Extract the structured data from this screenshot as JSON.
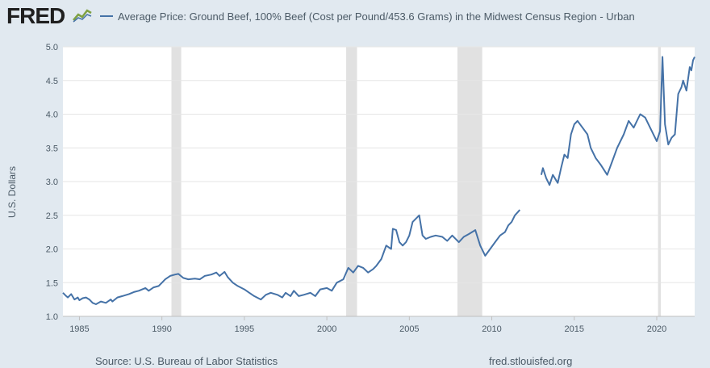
{
  "header": {
    "logo": "FRED",
    "logo_icon": "line-graph-icon"
  },
  "chart_data": {
    "type": "line",
    "ylabel": "U.S. Dollars",
    "xlim": [
      1984.0,
      2022.3
    ],
    "ylim": [
      1.0,
      5.0
    ],
    "yticks": [
      "1.0",
      "1.5",
      "2.0",
      "2.5",
      "3.0",
      "3.5",
      "4.0",
      "4.5",
      "5.0"
    ],
    "xticks": [
      "1985",
      "1990",
      "1995",
      "2000",
      "2005",
      "2010",
      "2015",
      "2020"
    ],
    "grid": true,
    "legend_position": "top-left",
    "recessions": [
      [
        1990.58,
        1991.17
      ],
      [
        2001.17,
        2001.83
      ],
      [
        2007.92,
        2009.42
      ],
      [
        2020.08,
        2020.25
      ]
    ],
    "series": [
      {
        "name": "Average Price: Ground Beef, 100% Beef (Cost per Pound/453.6 Grams) in the Midwest Census Region - Urban",
        "color": "#4572a7",
        "segments": [
          {
            "x": [
              1984.0,
              1984.2,
              1984.3,
              1984.5,
              1984.7,
              1984.9,
              1985.0,
              1985.2,
              1985.4,
              1985.6,
              1985.8,
              1986.0,
              1986.3,
              1986.6,
              1986.9,
              1987.0,
              1987.3,
              1987.6,
              1988.0,
              1988.3,
              1988.6,
              1989.0,
              1989.2,
              1989.5,
              1989.8,
              1990.0,
              1990.2,
              1990.5,
              1990.8,
              1991.0,
              1991.3,
              1991.6,
              1992.0,
              1992.3,
              1992.6,
              1993.0,
              1993.3,
              1993.5,
              1993.8,
              1994.0,
              1994.3,
              1994.6,
              1995.0,
              1995.3,
              1995.6,
              1996.0,
              1996.3,
              1996.6,
              1997.0,
              1997.3,
              1997.5,
              1997.8,
              1998.0,
              1998.3,
              1998.6,
              1999.0,
              1999.3,
              1999.6,
              2000.0,
              2000.3,
              2000.6,
              2001.0,
              2001.3,
              2001.6,
              2001.9,
              2002.2,
              2002.5,
              2002.8,
              2003.0,
              2003.3,
              2003.6,
              2003.9,
              2004.0,
              2004.2,
              2004.4,
              2004.6,
              2004.8,
              2005.0,
              2005.2,
              2005.4,
              2005.6,
              2005.8,
              2006.0,
              2006.3,
              2006.6,
              2007.0,
              2007.3,
              2007.6,
              2008.0,
              2008.3,
              2008.6,
              2009.0,
              2009.3,
              2009.6,
              2009.9,
              2010.2,
              2010.5,
              2010.8,
              2011.0,
              2011.2,
              2011.4,
              2011.7
            ],
            "y": [
              1.35,
              1.3,
              1.28,
              1.33,
              1.25,
              1.28,
              1.24,
              1.27,
              1.28,
              1.25,
              1.2,
              1.18,
              1.22,
              1.2,
              1.25,
              1.22,
              1.28,
              1.3,
              1.33,
              1.36,
              1.38,
              1.42,
              1.38,
              1.43,
              1.45,
              1.5,
              1.55,
              1.6,
              1.62,
              1.63,
              1.57,
              1.55,
              1.56,
              1.55,
              1.6,
              1.62,
              1.65,
              1.6,
              1.66,
              1.58,
              1.5,
              1.45,
              1.4,
              1.35,
              1.3,
              1.25,
              1.32,
              1.35,
              1.32,
              1.28,
              1.35,
              1.3,
              1.38,
              1.3,
              1.32,
              1.35,
              1.3,
              1.4,
              1.42,
              1.38,
              1.5,
              1.55,
              1.72,
              1.65,
              1.75,
              1.72,
              1.65,
              1.7,
              1.75,
              1.85,
              2.05,
              2.0,
              2.3,
              2.28,
              2.1,
              2.05,
              2.1,
              2.2,
              2.4,
              2.45,
              2.5,
              2.2,
              2.15,
              2.18,
              2.2,
              2.18,
              2.12,
              2.2,
              2.1,
              2.18,
              2.22,
              2.28,
              2.05,
              1.9,
              2.0,
              2.1,
              2.2,
              2.25,
              2.35,
              2.4,
              2.5,
              2.58
            ]
          },
          {
            "x": [
              2013.0,
              2013.1,
              2013.3,
              2013.5,
              2013.7,
              2014.0,
              2014.2,
              2014.4,
              2014.6,
              2014.8,
              2015.0,
              2015.2,
              2015.5,
              2015.8,
              2016.0,
              2016.3,
              2016.6,
              2017.0,
              2017.3,
              2017.6,
              2018.0,
              2018.3,
              2018.6,
              2019.0,
              2019.3,
              2019.6,
              2020.0,
              2020.2,
              2020.35,
              2020.5,
              2020.7,
              2020.9,
              2021.1,
              2021.3,
              2021.5,
              2021.6,
              2021.8,
              2022.0,
              2022.1,
              2022.2,
              2022.3
            ],
            "y": [
              3.1,
              3.2,
              3.05,
              2.95,
              3.1,
              2.98,
              3.2,
              3.4,
              3.35,
              3.7,
              3.85,
              3.9,
              3.8,
              3.7,
              3.5,
              3.35,
              3.25,
              3.1,
              3.3,
              3.5,
              3.7,
              3.9,
              3.8,
              4.0,
              3.95,
              3.8,
              3.6,
              3.75,
              4.85,
              3.85,
              3.55,
              3.65,
              3.7,
              4.3,
              4.4,
              4.5,
              4.35,
              4.7,
              4.65,
              4.8,
              4.85
            ]
          }
        ]
      }
    ]
  },
  "footer": {
    "source": "Source: U.S. Bureau of Labor Statistics",
    "credit": "fred.stlouisfed.org"
  }
}
